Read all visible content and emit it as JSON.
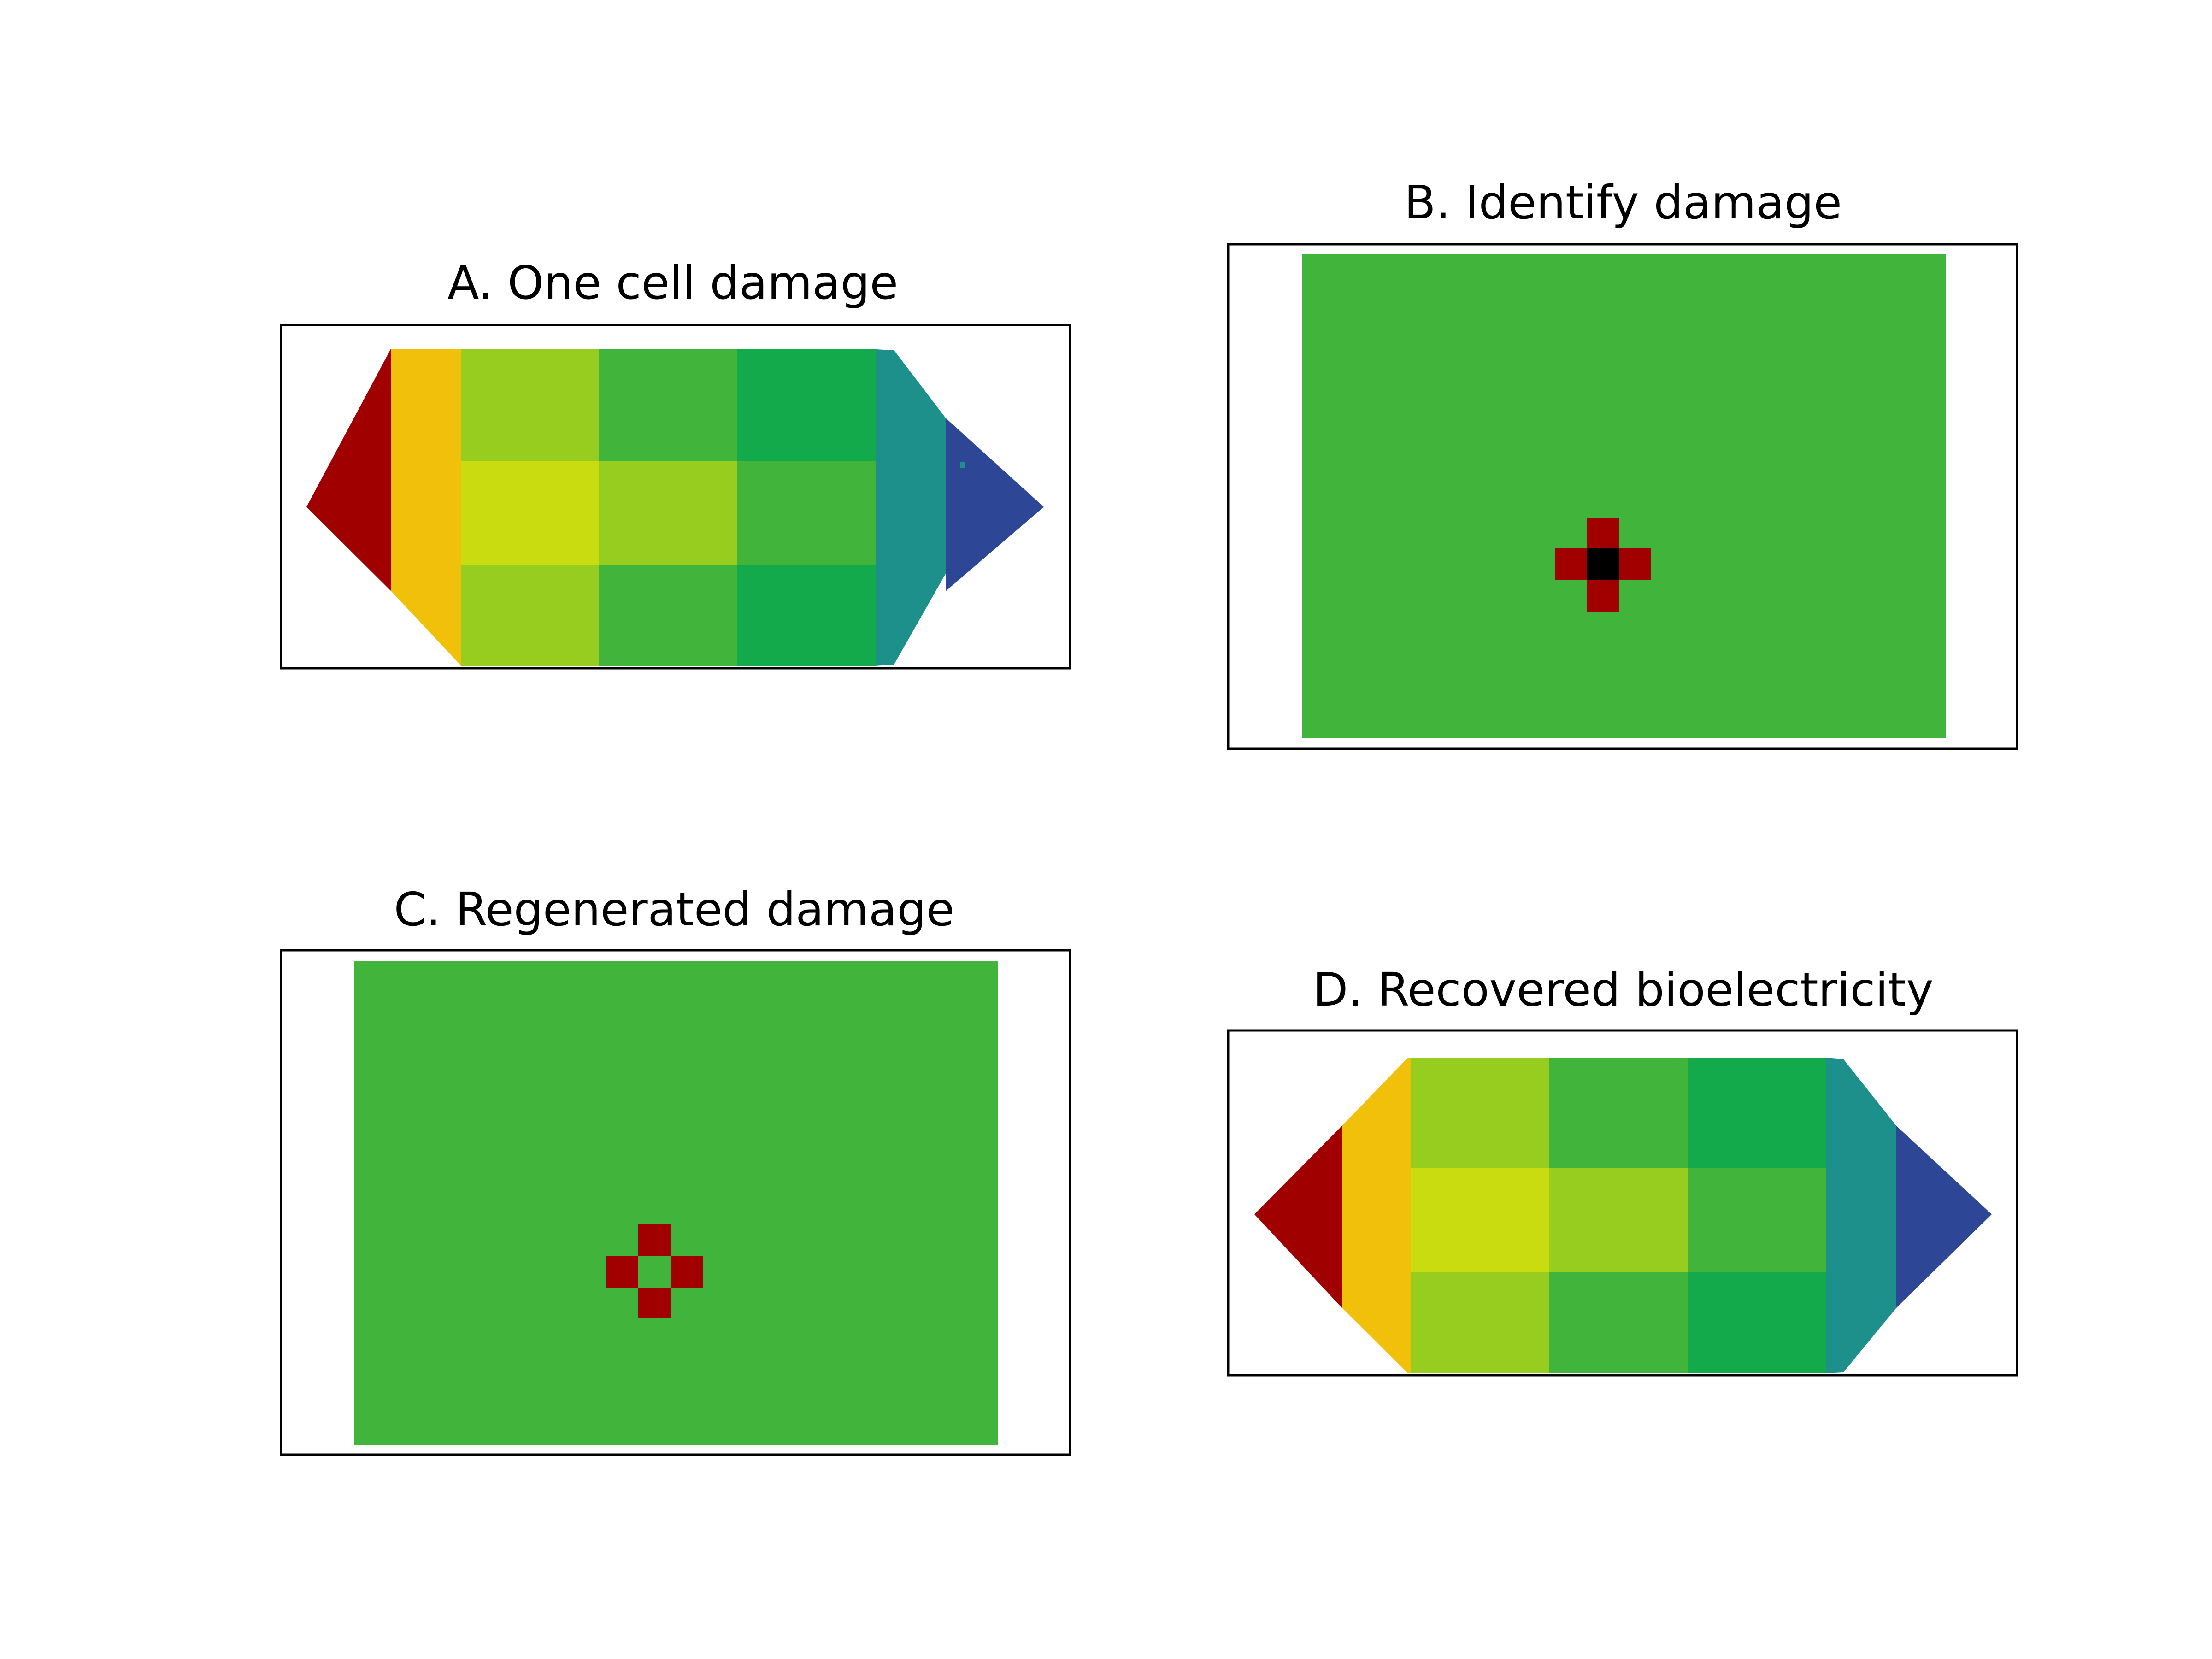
{
  "panels": [
    {
      "id": "A",
      "title": "A. One cell damage"
    },
    {
      "id": "B",
      "title": "B. Identify damage"
    },
    {
      "id": "C",
      "title": "C. Regenerated damage"
    },
    {
      "id": "D",
      "title": "D. Recovered bioelectricity"
    }
  ],
  "colors": {
    "dark_red": "#a00000",
    "orange": "#f0c00a",
    "yellow_green": "#c8dc0f",
    "lime": "#96cd1e",
    "green": "#41b43c",
    "dark_green": "#12aa4b",
    "teal": "#1e908c",
    "blue": "#2d4696",
    "black": "#000000",
    "background": "#ffffff"
  }
}
